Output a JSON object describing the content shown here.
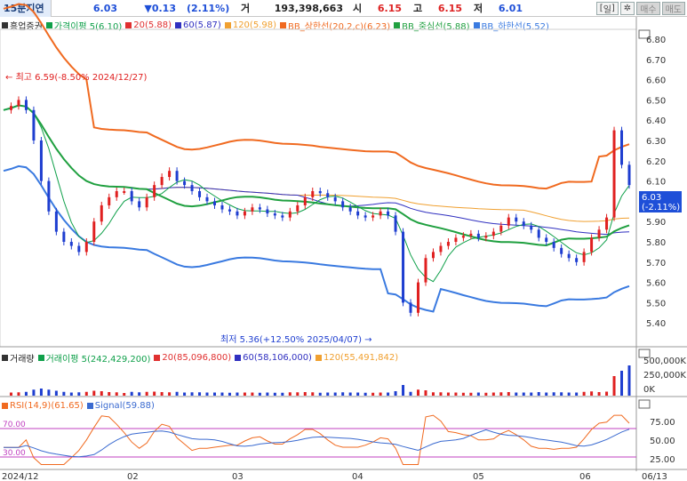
{
  "header": {
    "period": "15분지연",
    "price": "6.03",
    "change": "▼0.13",
    "change_rate": "(2.11%)",
    "volume_label": "거",
    "volume": "193,398,663",
    "open_label": "시",
    "open": "6.15",
    "high_label": "고",
    "high": "6.15",
    "low_label": "저",
    "low": "6.01",
    "period_button": "일",
    "settings_icon": "asterisk-icon",
    "buy_label": "매수",
    "sell_label": "매도"
  },
  "price_legend": {
    "name": "흥업증권",
    "ma_line": "가격이평 5(6.10)",
    "ma20": "20(5.88)",
    "ma60": "60(5.87)",
    "ma120": "120(5.98)",
    "bb_upper": "BB_상한선(20,2,c)(6.23)",
    "bb_mid": "BB_중심선(5.88)",
    "bb_lower": "BB_하한선(5.52)"
  },
  "volume_legend": {
    "name": "거래량",
    "ma_line": "거래이평 5(242,429,200)",
    "ma20": "20(85,096,800)",
    "ma60": "60(58,106,000)",
    "ma120": "120(55,491,842)"
  },
  "rsi_legend": {
    "rsi": "RSI(14,9)(61.65)",
    "signal": "Signal(59.88)"
  },
  "annotations": {
    "high": "최고 6.59(-8.50% 2024/12/27)",
    "low": "최저 5.36(+12.50% 2025/04/07)",
    "current_price": "6.03",
    "current_rate": "(-2.11%)"
  },
  "price_axis": [
    "6.80",
    "6.70",
    "6.60",
    "6.50",
    "6.40",
    "6.30",
    "6.20",
    "6.10",
    "6.00",
    "5.90",
    "5.80",
    "5.70",
    "5.60",
    "5.50",
    "5.40"
  ],
  "volume_axis": [
    "500,000K",
    "250,000K",
    "0K"
  ],
  "rsi_axis": [
    "75.00",
    "50.00",
    "25.00"
  ],
  "rsi_levels": {
    "upper": "70.00",
    "lower": "30.00"
  },
  "x_axis": [
    "2024/12",
    "02",
    "03",
    "04",
    "05",
    "06",
    "06/13"
  ],
  "colors": {
    "up": "#e02020",
    "down": "#1e3ed0",
    "ma5": "#0fa04a",
    "ma20": "#e03030",
    "ma60": "#3030c0",
    "ma120": "#f0a030",
    "bb_upper": "#f06a20",
    "bb_mid": "#20a040",
    "bb_lower": "#3a7ae0",
    "rsi": "#f06a20",
    "signal": "#3a6ad0"
  },
  "chart_data": {
    "type": "candlestick",
    "ylim": [
      5.33,
      6.85
    ],
    "x_range": "2024/12 - 2025/06/13",
    "price_path": [
      6.45,
      6.47,
      6.5,
      6.45,
      6.3,
      6.1,
      5.95,
      5.85,
      5.8,
      5.78,
      5.75,
      5.8,
      5.9,
      5.98,
      6.02,
      6.05,
      6.05,
      6.0,
      5.97,
      6.02,
      6.08,
      6.12,
      6.15,
      6.1,
      6.08,
      6.05,
      6.02,
      6.0,
      5.98,
      5.96,
      5.95,
      5.93,
      5.95,
      5.97,
      5.96,
      5.94,
      5.93,
      5.92,
      5.95,
      5.98,
      6.02,
      6.05,
      6.04,
      6.02,
      6.0,
      5.97,
      5.95,
      5.93,
      5.92,
      5.93,
      5.95,
      5.93,
      5.85,
      5.5,
      5.45,
      5.6,
      5.72,
      5.75,
      5.78,
      5.8,
      5.82,
      5.83,
      5.84,
      5.82,
      5.83,
      5.85,
      5.88,
      5.92,
      5.9,
      5.88,
      5.86,
      5.82,
      5.8,
      5.77,
      5.74,
      5.72,
      5.7,
      5.75,
      5.82,
      5.86,
      5.92,
      6.35,
      6.18,
      6.08
    ],
    "volume_ma5_last": "242,429,200",
    "rsi_last": 61.65,
    "signal_last": 59.88
  }
}
